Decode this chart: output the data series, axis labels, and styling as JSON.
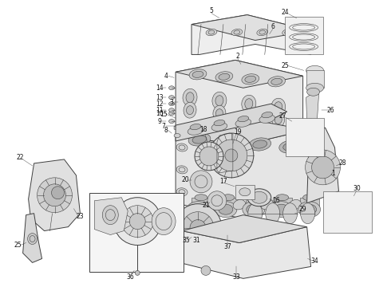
{
  "background_color": "#ffffff",
  "line_color": "#404040",
  "label_color": "#111111",
  "fig_width": 4.9,
  "fig_height": 3.6,
  "dpi": 100,
  "lw_main": 0.7,
  "lw_thin": 0.4,
  "lw_thick": 1.0
}
